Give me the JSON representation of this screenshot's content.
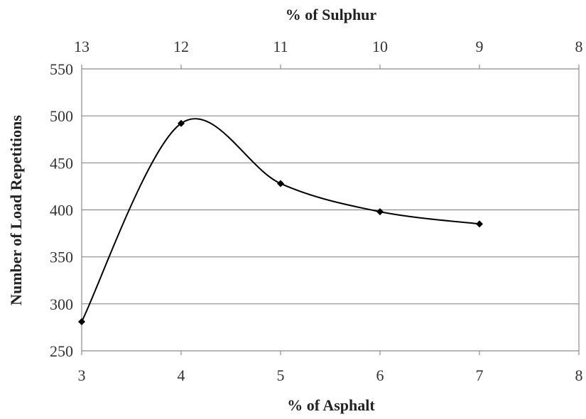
{
  "chart_data": {
    "type": "line",
    "title": "",
    "xlabel": "% of Asphalt",
    "x2label": "% of Sulphur",
    "ylabel": "Number of Load Repetitions",
    "x_ticks": [
      "3",
      "4",
      "5",
      "6",
      "7",
      "8"
    ],
    "x2_ticks": [
      "13",
      "12",
      "11",
      "10",
      "9",
      "8"
    ],
    "y_ticks": [
      "250",
      "300",
      "350",
      "400",
      "450",
      "500",
      "550"
    ],
    "xlim": [
      3,
      8
    ],
    "ylim": [
      250,
      550
    ],
    "grid": true,
    "smooth": true,
    "line_color": "#000000",
    "series": [
      {
        "x": [
          3,
          4,
          5,
          6,
          7
        ],
        "y": [
          281,
          492,
          428,
          398,
          385
        ]
      }
    ]
  }
}
